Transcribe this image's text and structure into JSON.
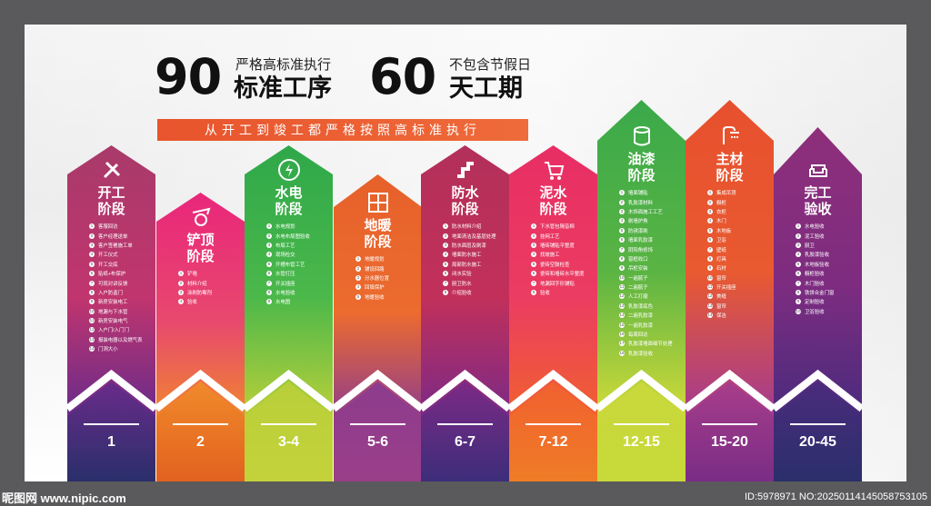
{
  "header": {
    "num_left": "90",
    "caption_left": "严格高标准执行",
    "label_left": "标准工序",
    "num_right": "60",
    "caption_right": "不包含节假日",
    "label_right": "天工期",
    "banner": "从开工到竣工都严格按照高标准执行"
  },
  "columns": [
    {
      "title1": "开工",
      "title2": "阶段",
      "icon": "tools-icon",
      "period": "1",
      "items": [
        "客服回访",
        "客户经理送单",
        "客户签署施工单",
        "开工仪式",
        "开工交底",
        "贴纸+布保护",
        "可现对讲反馈",
        "入户防盗门",
        "新房安装电工",
        "地漏与下水管",
        "新房安装电气",
        "入户门/入门门",
        "报装电器以及燃气表",
        "门洞大小"
      ],
      "top": [
        "#a83a6a",
        "#c1356e"
      ],
      "bottom": [
        "#6a2b8a",
        "#3b2d74"
      ]
    },
    {
      "title1": "铲顶",
      "title2": "阶段",
      "icon": "paint-roller-icon",
      "period": "2",
      "items": [
        "铲墙",
        "材料介绍",
        "涂刷防霉剂",
        "验收"
      ],
      "top": [
        "#e9267b",
        "#e8496e"
      ],
      "bottom": [
        "#f08a2b",
        "#e8721f"
      ]
    },
    {
      "title1": "水电",
      "title2": "阶段",
      "icon": "water-drop-icon",
      "period": "3-4",
      "items": [
        "水电规划",
        "水电布局图验收",
        "布局工艺",
        "现场检交",
        "开槽布管工艺",
        "水管打压",
        "开关插座",
        "水电验收",
        "水电图"
      ],
      "top": [
        "#2fa84a",
        "#4bb84a"
      ],
      "bottom": [
        "#b8cf3a",
        "#c8d93c"
      ]
    },
    {
      "title1": "地暖",
      "title2": "阶段",
      "icon": "floor-heating-icon",
      "period": "5-6",
      "items": [
        "地暖规划",
        "铺设回路",
        "分水器位置",
        "回填保护",
        "地暖验收"
      ],
      "top": [
        "#e6612a",
        "#ec6b2f"
      ],
      "bottom": [
        "#8d3c8e",
        "#9f3f8c"
      ]
    },
    {
      "title1": "防水",
      "title2": "阶段",
      "icon": "pipe-icon",
      "period": "6-7",
      "items": [
        "防水材料介绍",
        "地面清洁及基层处理",
        "防水面层及刷漆",
        "墙面防水施工",
        "局部防水施工",
        "闭水实验",
        "厨卫防水",
        "介绍验收"
      ],
      "top": [
        "#b2305a",
        "#c2305a"
      ],
      "bottom": [
        "#7c2a86",
        "#5e2b7d"
      ]
    },
    {
      "title1": "泥水",
      "title2": "阶段",
      "icon": "cart-icon",
      "period": "7-12",
      "items": [
        "下水管包隔音棉",
        "挂网工艺",
        "墙砖铺贴平整度",
        "找坡施工",
        "瓷砖空鼓检查",
        "瓷砖和墙砖水平整度",
        "地漏回字形铺贴",
        "验收"
      ],
      "top": [
        "#e82e64",
        "#eb3c62"
      ],
      "bottom": [
        "#f06030",
        "#f2892a"
      ]
    },
    {
      "title1": "油漆",
      "title2": "阶段",
      "icon": "paint-bucket-icon",
      "period": "12-15",
      "items": [
        "墙面铺贴",
        "乳胶漆材料",
        "木饰面施工工艺",
        "刷墙护角",
        "防锈漆刷",
        "墙面乳胶漆",
        "阴阳角修饰",
        "窗框收口",
        "吊柜安装",
        "一遍腻子",
        "二遍腻子",
        "人工打磨",
        "乳胶漆底色",
        "二遍乳胶漆",
        "一遍乳胶漆",
        "每周回访",
        "乳胶漆墙面细节处理",
        "乳胶漆验收"
      ],
      "top": [
        "#3aa94a",
        "#5ab443"
      ],
      "bottom": [
        "#c9d83a",
        "#d6df3c"
      ]
    },
    {
      "title1": "主材",
      "title2": "阶段",
      "icon": "shower-icon",
      "period": "15-20",
      "items": [
        "集成吊顶",
        "橱柜",
        "衣柜",
        "木门",
        "木地板",
        "卫浴",
        "壁纸",
        "灯具",
        "石材",
        "窗帘",
        "开关插座",
        "美缝",
        "窗帘",
        "保洁"
      ],
      "top": [
        "#e7502e",
        "#e95a30"
      ],
      "bottom": [
        "#a83d8a",
        "#7a2f86"
      ]
    },
    {
      "title1": "完工",
      "title2": "验收",
      "icon": "sofa-icon",
      "period": "20-45",
      "items": [
        "水电验收",
        "泥工验收",
        "厨卫",
        "乳胶漆验收",
        "木地板验收",
        "橱柜验收",
        "木门验收",
        "铁饼合金门窗",
        "定制验收",
        "卫浴验收"
      ],
      "top": [
        "#8e2f7a",
        "#7d2c80"
      ],
      "bottom": [
        "#4b2b7d",
        "#2e2b73"
      ]
    }
  ],
  "footer_colors": [
    "#2a2f6b",
    "#e2621f",
    "#c4d23a",
    "#9a3e89",
    "#3d2d7a",
    "#ef7c26",
    "#c8d93a",
    "#7a2d86",
    "#2a2f6b"
  ],
  "watermark_left": "昵图网 www.nipic.com",
  "watermark_right": "ID:5978971 NO:20250114145058753105"
}
